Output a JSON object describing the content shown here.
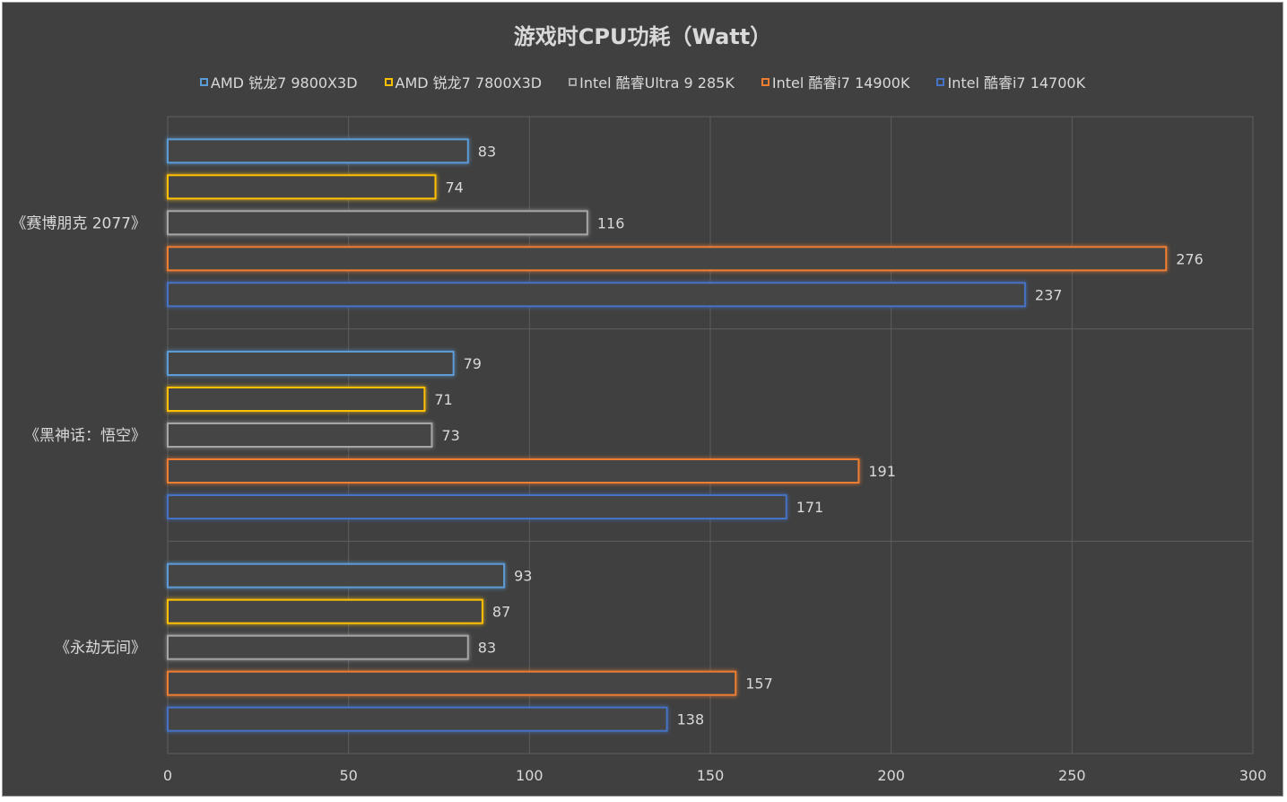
{
  "chart_data": {
    "type": "bar",
    "orientation": "horizontal",
    "title": "游戏时CPU功耗（Watt）",
    "categories": [
      "《赛博朋克 2077》",
      "《黑神话：悟空》",
      "《永劫无间》"
    ],
    "series": [
      {
        "name": "AMD 锐龙7 9800X3D",
        "color": "#5b9bd5",
        "values": [
          83,
          79,
          93
        ]
      },
      {
        "name": "AMD 锐龙7 7800X3D",
        "color": "#ffc000",
        "values": [
          74,
          71,
          87
        ]
      },
      {
        "name": "Intel 酷睿Ultra 9 285K",
        "color": "#a5a5a5",
        "values": [
          116,
          73,
          83
        ]
      },
      {
        "name": "Intel 酷睿i7 14900K",
        "color": "#ed7d31",
        "values": [
          276,
          191,
          157
        ]
      },
      {
        "name": "Intel 酷睿i7 14700K",
        "color": "#4472c4",
        "values": [
          237,
          171,
          138
        ]
      }
    ],
    "xlim": [
      0,
      300
    ],
    "xticks": [
      0,
      50,
      100,
      150,
      200,
      250,
      300
    ],
    "grid": true,
    "legend_position": "top"
  }
}
